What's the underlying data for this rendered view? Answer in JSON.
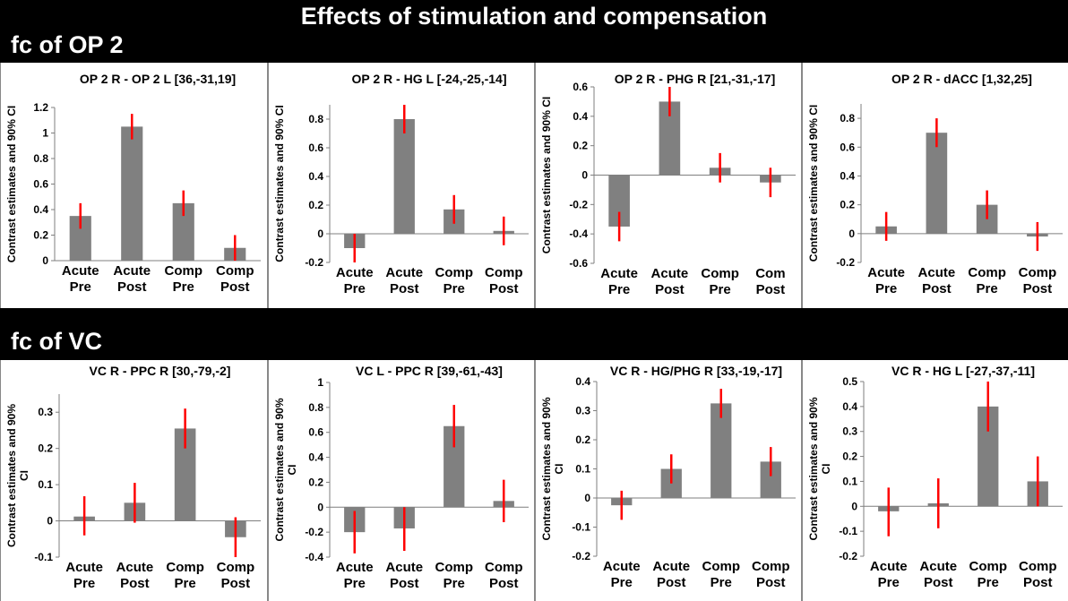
{
  "header": {
    "title": "Effects of stimulation and compensation",
    "section_top": "fc of OP 2",
    "section_bottom": "fc of VC"
  },
  "colors": {
    "bar": "#808080",
    "error": "#ff0000",
    "band": "#000000"
  },
  "chart_data": [
    {
      "type": "bar",
      "title": "OP 2 R - OP 2 L [36,-31,19]",
      "ylabel": "Contrast estimates and 90% CI",
      "categories": [
        "Acute Pre",
        "Acute Post",
        "Comp Pre",
        "Comp Post"
      ],
      "tick_labels": [
        [
          "Acute",
          "Pre"
        ],
        [
          "Acute",
          "Post"
        ],
        [
          "Comp",
          "Pre"
        ],
        [
          "Comp",
          "Post"
        ]
      ],
      "values": [
        0.35,
        1.05,
        0.45,
        0.1
      ],
      "ci": [
        [
          0.25,
          0.45
        ],
        [
          0.95,
          1.15
        ],
        [
          0.35,
          0.55
        ],
        [
          0.0,
          0.2
        ]
      ],
      "ylim": [
        0,
        1.2
      ],
      "yticks": [
        "0",
        "0.2",
        "0.4",
        "0.6",
        "0.8",
        "1",
        "1.2"
      ],
      "ytick_values": [
        0,
        0.2,
        0.4,
        0.6,
        0.8,
        1.0,
        1.2
      ]
    },
    {
      "type": "bar",
      "title": "OP 2 R - HG L [-24,-25,-14]",
      "ylabel": "Contrast estimates and 90% CI",
      "categories": [
        "Acute Pre",
        "Acute Post",
        "Comp Pre",
        "Comp Post"
      ],
      "tick_labels": [
        [
          "Acute",
          "Pre"
        ],
        [
          "Acute",
          "Post"
        ],
        [
          "Comp",
          "Pre"
        ],
        [
          "Comp",
          "Post"
        ]
      ],
      "values": [
        -0.1,
        0.8,
        0.17,
        0.02
      ],
      "ci": [
        [
          -0.2,
          0.0
        ],
        [
          0.7,
          0.9
        ],
        [
          0.07,
          0.27
        ],
        [
          -0.08,
          0.12
        ]
      ],
      "ylim": [
        -0.2,
        0.9
      ],
      "yticks": [
        "-0.2",
        "0",
        "0.2",
        "0.4",
        "0.6",
        "0.8"
      ],
      "ytick_values": [
        -0.2,
        0,
        0.2,
        0.4,
        0.6,
        0.8
      ]
    },
    {
      "type": "bar",
      "title": "OP 2 R - PHG R [21,-31,-17]",
      "ylabel": "Contrast estimates and 90% CI",
      "categories": [
        "Acute Pre",
        "Acute Post",
        "Comp Pre",
        "Com Post"
      ],
      "tick_labels": [
        [
          "Acute",
          "Pre"
        ],
        [
          "Acute",
          "Post"
        ],
        [
          "Comp",
          "Pre"
        ],
        [
          "Com",
          "Post"
        ]
      ],
      "values": [
        -0.35,
        0.5,
        0.05,
        -0.05
      ],
      "ci": [
        [
          -0.45,
          -0.25
        ],
        [
          0.4,
          0.6
        ],
        [
          -0.05,
          0.15
        ],
        [
          -0.15,
          0.05
        ]
      ],
      "ylim": [
        -0.6,
        0.6
      ],
      "yticks": [
        "-0.6",
        "-0.4",
        "-0.2",
        "0",
        "0.2",
        "0.4",
        "0.6"
      ],
      "ytick_values": [
        -0.6,
        -0.4,
        -0.2,
        0,
        0.2,
        0.4,
        0.6
      ]
    },
    {
      "type": "bar",
      "title": "OP 2 R - dACC  [1,32,25]",
      "ylabel": "Contrast estimates and 90% CI",
      "categories": [
        "Acute Pre",
        "Acute Post",
        "Comp Pre",
        "Comp Post"
      ],
      "tick_labels": [
        [
          "Acute",
          "Pre"
        ],
        [
          "Acute",
          "Post"
        ],
        [
          "Comp",
          "Pre"
        ],
        [
          "Comp",
          "Post"
        ]
      ],
      "values": [
        0.05,
        0.7,
        0.2,
        -0.02
      ],
      "ci": [
        [
          -0.05,
          0.15
        ],
        [
          0.6,
          0.8
        ],
        [
          0.1,
          0.3
        ],
        [
          -0.12,
          0.08
        ]
      ],
      "ylim": [
        -0.2,
        0.9
      ],
      "yticks": [
        "-0.2",
        "0",
        "0.2",
        "0.4",
        "0.6",
        "0.8"
      ],
      "ytick_values": [
        -0.2,
        0,
        0.2,
        0.4,
        0.6,
        0.8
      ]
    },
    {
      "type": "bar",
      "title": "VC R - PPC R [30,-79,-2]",
      "ylabel": [
        "Contrast estimates and 90%",
        "CI"
      ],
      "categories": [
        "Acute Pre",
        "Acute Post",
        "Comp Pre",
        "Comp Post"
      ],
      "tick_labels": [
        [
          "Acute",
          "Pre"
        ],
        [
          "Acute",
          "Post"
        ],
        [
          "Comp",
          "Pre"
        ],
        [
          "Comp",
          "Post"
        ]
      ],
      "values": [
        0.012,
        0.05,
        0.255,
        -0.045
      ],
      "ci": [
        [
          -0.04,
          0.068
        ],
        [
          -0.005,
          0.105
        ],
        [
          0.2,
          0.31
        ],
        [
          -0.1,
          0.01
        ]
      ],
      "ylim": [
        -0.1,
        0.35
      ],
      "yticks": [
        "-0.1",
        "0",
        "0.1",
        "0.2",
        "0.3"
      ],
      "ytick_values": [
        -0.1,
        0,
        0.1,
        0.2,
        0.3
      ]
    },
    {
      "type": "bar",
      "title": "VC L - PPC R [39,-61,-43]",
      "ylabel": [
        "Contrast estimates and 90%",
        "CI"
      ],
      "categories": [
        "Acute Pre",
        "Acute Post",
        "Comp Pre",
        "Comp Post"
      ],
      "tick_labels": [
        [
          "Acute",
          "Pre"
        ],
        [
          "Acute",
          "Post"
        ],
        [
          "Comp",
          "Pre"
        ],
        [
          "Comp",
          "Post"
        ]
      ],
      "values": [
        -0.2,
        -0.17,
        0.65,
        0.05
      ],
      "ci": [
        [
          -0.37,
          -0.03
        ],
        [
          -0.35,
          0.0
        ],
        [
          0.48,
          0.82
        ],
        [
          -0.12,
          0.22
        ]
      ],
      "ylim": [
        -0.4,
        1.0
      ],
      "yticks": [
        "-0.4",
        "-0.2",
        "0",
        "0.2",
        "0.4",
        "0.6",
        "0.8",
        "1"
      ],
      "ytick_values": [
        -0.4,
        -0.2,
        0,
        0.2,
        0.4,
        0.6,
        0.8,
        1.0
      ]
    },
    {
      "type": "bar",
      "title": "VC R - HG/PHG R [33,-19,-17]",
      "ylabel": [
        "Contrast estimates and 90%",
        "CI"
      ],
      "categories": [
        "Acute Pre",
        "Acute Post",
        "Comp Pre",
        "Comp Post"
      ],
      "tick_labels": [
        [
          "Acute",
          "Pre"
        ],
        [
          "Acute",
          "Post"
        ],
        [
          "Comp",
          "Pre"
        ],
        [
          "Comp",
          "Post"
        ]
      ],
      "values": [
        -0.025,
        0.1,
        0.325,
        0.125
      ],
      "ci": [
        [
          -0.075,
          0.025
        ],
        [
          0.05,
          0.15
        ],
        [
          0.275,
          0.375
        ],
        [
          0.075,
          0.175
        ]
      ],
      "ylim": [
        -0.2,
        0.4
      ],
      "yticks": [
        "-0.2",
        "-0.1",
        "0",
        "0.1",
        "0.2",
        "0.3",
        "0.4"
      ],
      "ytick_values": [
        -0.2,
        -0.1,
        0,
        0.1,
        0.2,
        0.3,
        0.4
      ]
    },
    {
      "type": "bar",
      "title": "VC R - HG L [-27,-37,-11]",
      "ylabel": [
        "Contrast estimates and 90%",
        "CI"
      ],
      "categories": [
        "Acute Pre",
        "Acute Post",
        "Comp Pre",
        "Comp Post"
      ],
      "tick_labels": [
        [
          "Acute",
          "Pre"
        ],
        [
          "Acute",
          "Post"
        ],
        [
          "Comp",
          "Pre"
        ],
        [
          "Comp",
          "Post"
        ]
      ],
      "values": [
        -0.02,
        0.012,
        0.4,
        0.1
      ],
      "ci": [
        [
          -0.12,
          0.075
        ],
        [
          -0.088,
          0.112
        ],
        [
          0.3,
          0.5
        ],
        [
          0.0,
          0.2
        ]
      ],
      "ylim": [
        -0.2,
        0.5
      ],
      "yticks": [
        "-0.2",
        "-0.1",
        "0",
        "0.1",
        "0.2",
        "0.3",
        "0.4",
        "0.5"
      ],
      "ytick_values": [
        -0.2,
        -0.1,
        0,
        0.1,
        0.2,
        0.3,
        0.4,
        0.5
      ]
    }
  ]
}
